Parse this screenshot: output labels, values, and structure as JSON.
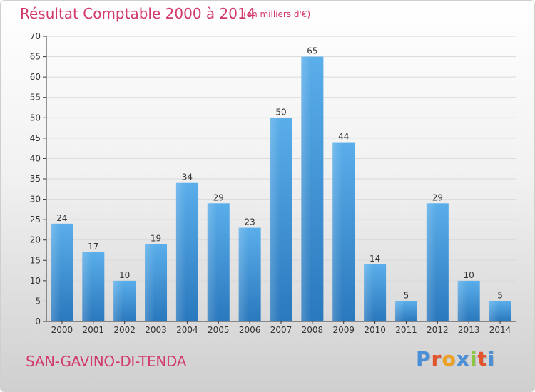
{
  "chart_data": {
    "type": "bar",
    "title": "Résultat Comptable 2000 à 2014",
    "subtitle": "(en milliers d'€)",
    "categories": [
      "2000",
      "2001",
      "2002",
      "2003",
      "2004",
      "2005",
      "2006",
      "2007",
      "2008",
      "2009",
      "2010",
      "2011",
      "2012",
      "2013",
      "2014"
    ],
    "values": [
      24,
      17,
      10,
      19,
      34,
      29,
      23,
      50,
      65,
      44,
      14,
      5,
      29,
      10,
      5
    ],
    "ylim": [
      0,
      70
    ],
    "yticks": [
      0,
      5,
      10,
      15,
      20,
      25,
      30,
      35,
      40,
      45,
      50,
      55,
      60,
      65,
      70
    ],
    "xlabel": "",
    "ylabel": "",
    "grid": true,
    "bar_color_top": "#5aaeea",
    "bar_color_bottom": "#2a78bd"
  },
  "footer": {
    "commune": "SAN-GAVINO-DI-TENDA"
  },
  "logo": {
    "letters": [
      "P",
      "r",
      "o",
      "x",
      "i",
      "t",
      "i"
    ],
    "colors": [
      "#4a90d9",
      "#e2542c",
      "#f0a020",
      "#4a90d9",
      "#8cc63f",
      "#e2542c",
      "#4a90d9"
    ]
  }
}
